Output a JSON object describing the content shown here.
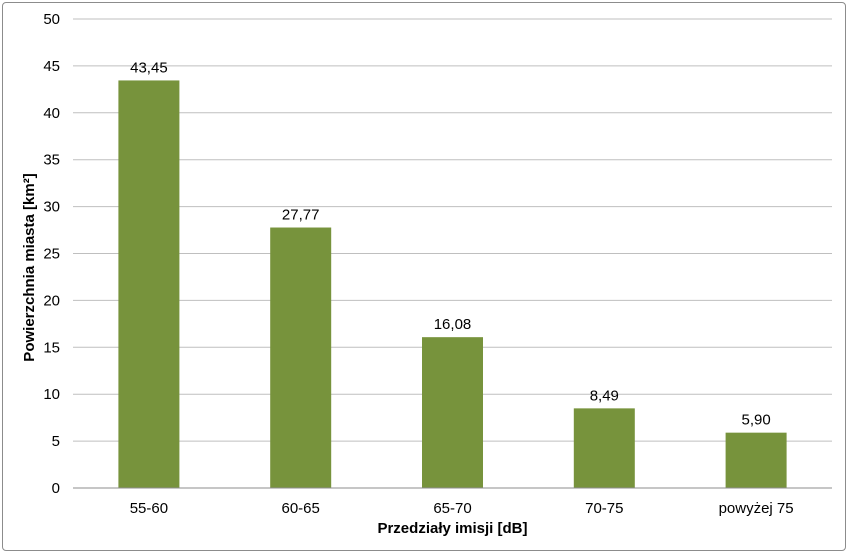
{
  "chart_data": {
    "type": "bar",
    "categories": [
      "55-60",
      "60-65",
      "65-70",
      "70-75",
      "powyżej 75"
    ],
    "values": [
      43.45,
      27.77,
      16.08,
      8.49,
      5.9
    ],
    "data_labels": [
      "43,45",
      "27,77",
      "16,08",
      "8,49",
      "5,90"
    ],
    "xlabel": "Przedziały imisji [dB]",
    "ylabel": "Powierzchnia miasta [km²]",
    "ylim": [
      0,
      50
    ],
    "yticks": [
      "0",
      "5",
      "10",
      "15",
      "20",
      "25",
      "30",
      "35",
      "40",
      "45",
      "50"
    ],
    "grid": true,
    "legend": "none",
    "bar_color": "#77933c",
    "grid_color": "#bfbfbf"
  }
}
